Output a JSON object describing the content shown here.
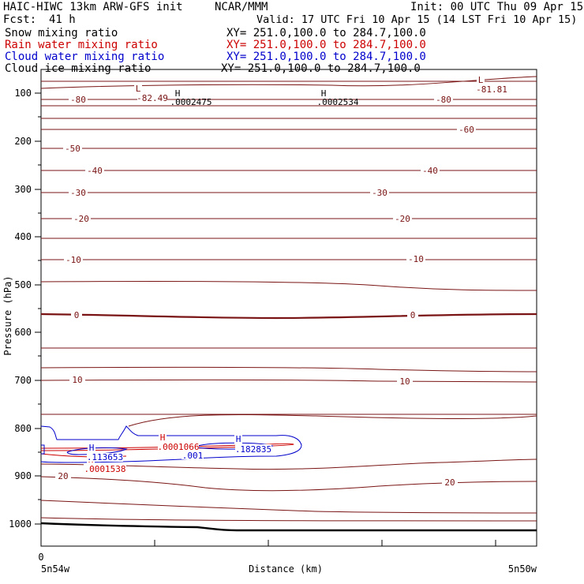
{
  "header": {
    "title": "HAIC-HIWC 13km ARW-GFS init",
    "producer": "NCAR/MMM",
    "init": "Init: 00 UTC Thu 09 Apr 15",
    "fcst_label": "Fcst:",
    "fcst_value": "41 h",
    "valid": "Valid: 17 UTC Fri 10 Apr 15 (14 LST Fri 10 Apr 15)"
  },
  "fields": [
    {
      "name": "Snow mixing ratio",
      "xy": "XY= 251.0,100.0 to 284.7,100.0",
      "color": "#000000"
    },
    {
      "name": "Rain water mixing ratio",
      "xy": "XY= 251.0,100.0 to 284.7,100.0",
      "color": "#cc0000"
    },
    {
      "name": "Cloud water mixing ratio",
      "xy": "XY= 251.0,100.0 to 284.7,100.0",
      "color": "#0000cc"
    },
    {
      "name": "Cloud ice mixing ratio",
      "xy": "XY= 251.0,100.0 to 284.7,100.0",
      "color": "#000000"
    }
  ],
  "chart_data": {
    "type": "contour cross-section",
    "ylabel": "Pressure (hPa)",
    "xlabel": "Distance (km)",
    "x_start_label": "5n54w",
    "x_end_label": "5n50w",
    "x_zero_label": "0",
    "y_ticks": [
      100,
      200,
      300,
      400,
      500,
      600,
      700,
      800,
      900,
      1000
    ],
    "temperature_labels": [
      "-80",
      "-60",
      "-50",
      "-40",
      "-30",
      "-20",
      "-10",
      "0",
      "10",
      "20"
    ],
    "extrema": [
      {
        "type": "L",
        "value": "-82.49",
        "color": "#7a1414"
      },
      {
        "type": "L",
        "value": "-81.81",
        "color": "#7a1414"
      },
      {
        "type": "H",
        "value": ".0002475",
        "color": "#000000"
      },
      {
        "type": "H",
        "value": ".0002534",
        "color": "#000000"
      },
      {
        "type": "H",
        "value": ".0001066",
        "color": "#cc0000"
      },
      {
        "type": "H",
        "value": ".0001538",
        "color": "#cc0000"
      },
      {
        "type": "H",
        "value": ".182835",
        "color": "#0000cc"
      },
      {
        "type": "H",
        "value": ".113653",
        "color": "#0000cc"
      }
    ],
    "cloud_contour_label": ".001",
    "colors": {
      "temperature": "#7a1414",
      "rain": "#cc0000",
      "cloud_water": "#0000cc",
      "terrain": "#000000"
    }
  }
}
